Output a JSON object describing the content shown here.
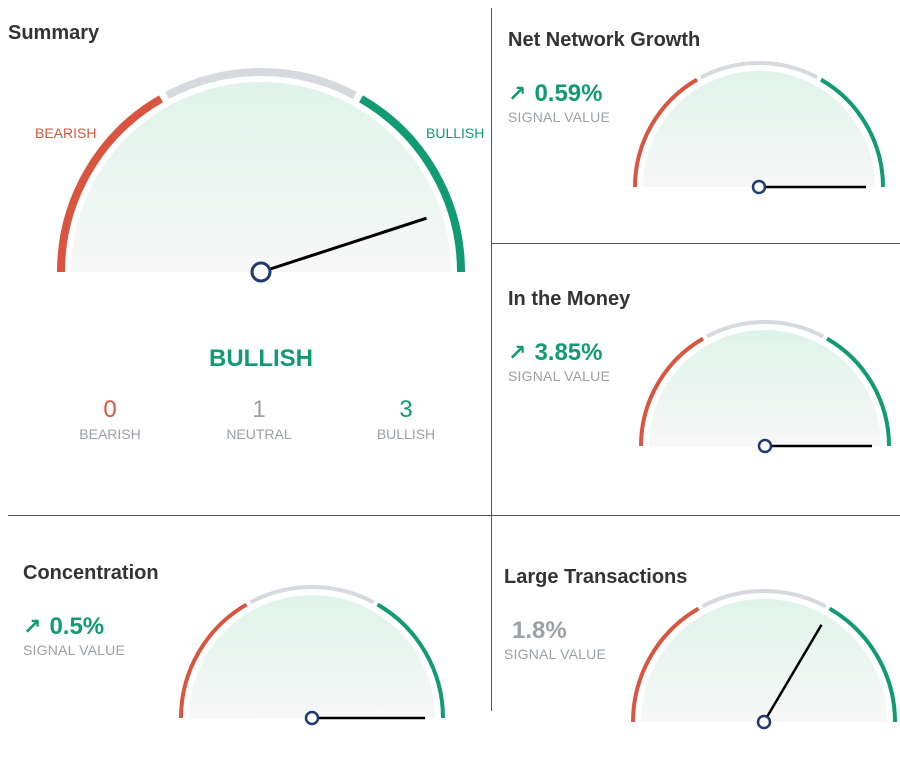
{
  "colors": {
    "bearish": "#d9553f",
    "neutral": "#d6d9dd",
    "bullish": "#109b73",
    "needle": "#000000",
    "hub": "#1f3a6e",
    "muted": "#9aa0a6"
  },
  "summary": {
    "title": "Summary",
    "bearish_label": "BEARISH",
    "bullish_label": "BULLISH",
    "state": "BULLISH",
    "needle_value": 0.9,
    "counts": [
      {
        "value": "0",
        "label": "BEARISH",
        "color": "#d9553f"
      },
      {
        "value": "1",
        "label": "NEUTRAL",
        "color": "#9aa0a6"
      },
      {
        "value": "3",
        "label": "BULLISH",
        "color": "#109b73"
      }
    ]
  },
  "indicators": [
    {
      "key": "net_network_growth",
      "title": "Net Network Growth",
      "value": "0.59%",
      "trend_icon": "arrow-up-right-icon",
      "color": "#109b73",
      "sub": "SIGNAL VALUE",
      "needle_value": 1.0
    },
    {
      "key": "in_the_money",
      "title": "In the Money",
      "value": "3.85%",
      "trend_icon": "arrow-up-right-icon",
      "color": "#109b73",
      "sub": "SIGNAL VALUE",
      "needle_value": 1.0
    },
    {
      "key": "concentration",
      "title": "Concentration",
      "value": "0.5%",
      "trend_icon": "arrow-up-right-icon",
      "color": "#109b73",
      "sub": "SIGNAL VALUE",
      "needle_value": 1.0
    },
    {
      "key": "large_transactions",
      "title": "Large Transactions",
      "value": "1.8%",
      "trend_icon": null,
      "color": "#9aa0a6",
      "sub": "SIGNAL VALUE",
      "needle_value": 0.67
    }
  ]
}
